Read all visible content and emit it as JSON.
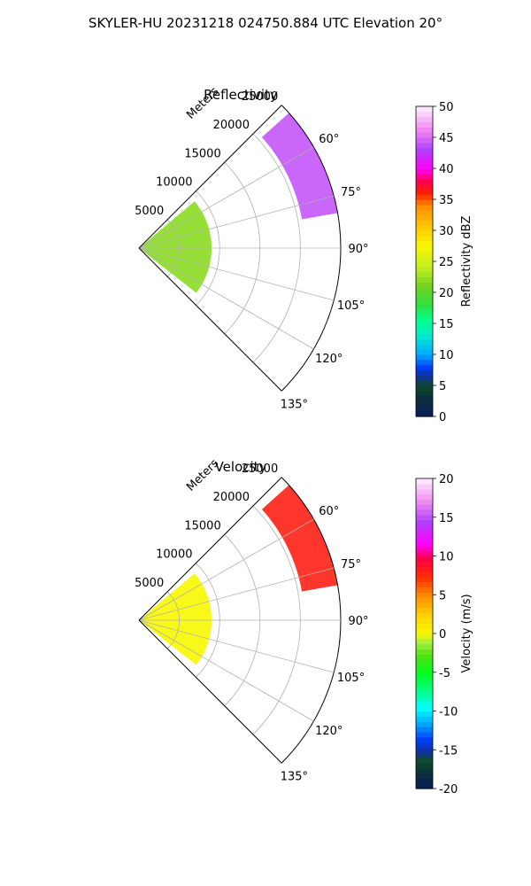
{
  "figure": {
    "title": "SKYLER-HU  20231218  024750.884 UTC Elevation 20°"
  },
  "chart_data": [
    {
      "type": "heatmap",
      "projection": "polar-sector",
      "title": "Reflectivity",
      "radial_label": "Meters",
      "theta_range_deg": [
        45,
        135
      ],
      "r_range": [
        0,
        25000
      ],
      "r_ticks": [
        5000,
        10000,
        15000,
        20000,
        25000
      ],
      "theta_ticks": [
        60,
        75,
        90,
        105,
        120,
        135
      ],
      "theta_tick_labels": [
        "60°",
        "75°",
        "90°",
        "105°",
        "120°",
        "135°"
      ],
      "grid": true,
      "colorbar": {
        "label": "Reflectivity dBZ",
        "range": [
          0,
          50
        ],
        "ticks": [
          0,
          5,
          10,
          15,
          20,
          25,
          30,
          35,
          40,
          45,
          50
        ],
        "colormap": "pyart-HomeyerRainbow"
      },
      "echo_regions": [
        {
          "theta_from": 50,
          "theta_to": 128,
          "r_from": 0,
          "r_to": 9000,
          "value": 22
        },
        {
          "theta_from": 48,
          "theta_to": 80,
          "r_from": 20500,
          "r_to": 25000,
          "value": 44
        }
      ]
    },
    {
      "type": "heatmap",
      "projection": "polar-sector",
      "title": "Velocity",
      "radial_label": "Meters",
      "theta_range_deg": [
        45,
        135
      ],
      "r_range": [
        0,
        25000
      ],
      "r_ticks": [
        5000,
        10000,
        15000,
        20000,
        25000
      ],
      "theta_ticks": [
        60,
        75,
        90,
        105,
        120,
        135
      ],
      "theta_tick_labels": [
        "60°",
        "75°",
        "90°",
        "105°",
        "120°",
        "135°"
      ],
      "grid": true,
      "colorbar": {
        "label": "Velocity (m/s)",
        "range": [
          -20,
          20
        ],
        "ticks": [
          -20,
          -15,
          -10,
          -5,
          0,
          5,
          10,
          15,
          20
        ],
        "colormap": "pyart-BuDRd18"
      },
      "echo_regions": [
        {
          "theta_from": 50,
          "theta_to": 128,
          "r_from": 0,
          "r_to": 9000,
          "value": 0
        },
        {
          "theta_from": 48,
          "theta_to": 80,
          "r_from": 20500,
          "r_to": 25000,
          "value": 8
        }
      ]
    }
  ]
}
